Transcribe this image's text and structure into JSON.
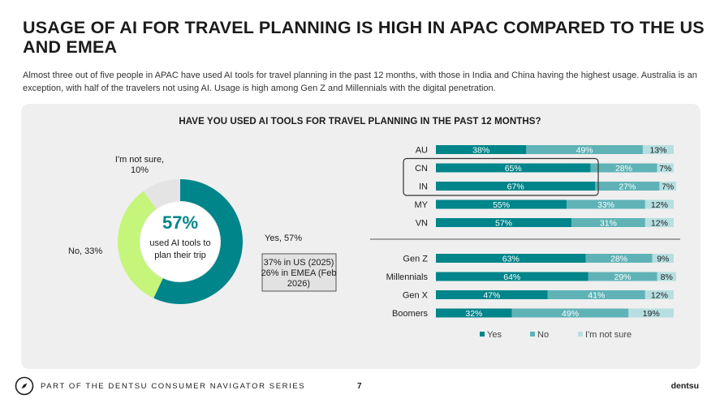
{
  "title": "USAGE OF AI FOR TRAVEL PLANNING IS HIGH IN APAC COMPARED TO THE US AND EMEA",
  "subtitle": "Almost three out of five people in APAC have used AI tools for travel planning in the past 12 months, with those in India and China having the highest usage. Australia is an exception, with half of the travelers not using AI. Usage is high among Gen Z and Millennials with the digital penetration.",
  "chart_title": "HAVE YOU USED AI TOOLS FOR TRAVEL PLANNING IN THE PAST 12 MONTHS?",
  "colors": {
    "yes": "#00858a",
    "no": "#5fb3b7",
    "not_sure": "#b7dfe1",
    "donut_no": "#c5f57b",
    "donut_not_sure": "#e4e4e4",
    "donut_yes": "#00858a"
  },
  "chart_data": [
    {
      "type": "pie",
      "variant": "donut",
      "center_value": "57%",
      "center_text_lines": [
        "used AI tools to",
        "plan their trip"
      ],
      "slices": [
        {
          "name": "Yes",
          "value": 57,
          "label": "Yes, 57%"
        },
        {
          "name": "No",
          "value": 33,
          "label": "No, 33%"
        },
        {
          "name": "I'm not sure",
          "value": 10,
          "label_lines": [
            "I'm not sure,",
            "10%"
          ]
        }
      ],
      "callout_lines": [
        "37% in US (2025)",
        "26% in EMEA (Feb",
        "2026)"
      ]
    },
    {
      "type": "bar",
      "orientation": "horizontal",
      "stacked": true,
      "categories": [
        "AU",
        "CN",
        "IN",
        "MY",
        "VN"
      ],
      "highlighted": [
        "CN",
        "IN"
      ],
      "series": [
        {
          "name": "Yes",
          "values": [
            38,
            65,
            67,
            55,
            57
          ]
        },
        {
          "name": "No",
          "values": [
            49,
            28,
            27,
            33,
            31
          ]
        },
        {
          "name": "I'm not sure",
          "values": [
            13,
            7,
            7,
            12,
            12
          ]
        }
      ]
    },
    {
      "type": "bar",
      "orientation": "horizontal",
      "stacked": true,
      "categories": [
        "Gen Z",
        "Millennials",
        "Gen X",
        "Boomers"
      ],
      "series": [
        {
          "name": "Yes",
          "values": [
            63,
            64,
            47,
            32
          ]
        },
        {
          "name": "No",
          "values": [
            28,
            29,
            41,
            49
          ]
        },
        {
          "name": "I'm not sure",
          "values": [
            9,
            8,
            12,
            19
          ]
        }
      ]
    }
  ],
  "legend": {
    "placement": "bottom",
    "items": [
      "Yes",
      "No",
      "I'm not sure"
    ]
  },
  "footer": {
    "series_label": "PART OF THE DENTSU CONSUMER NAVIGATOR SERIES",
    "page_number": "7",
    "brand": "dentsu"
  }
}
